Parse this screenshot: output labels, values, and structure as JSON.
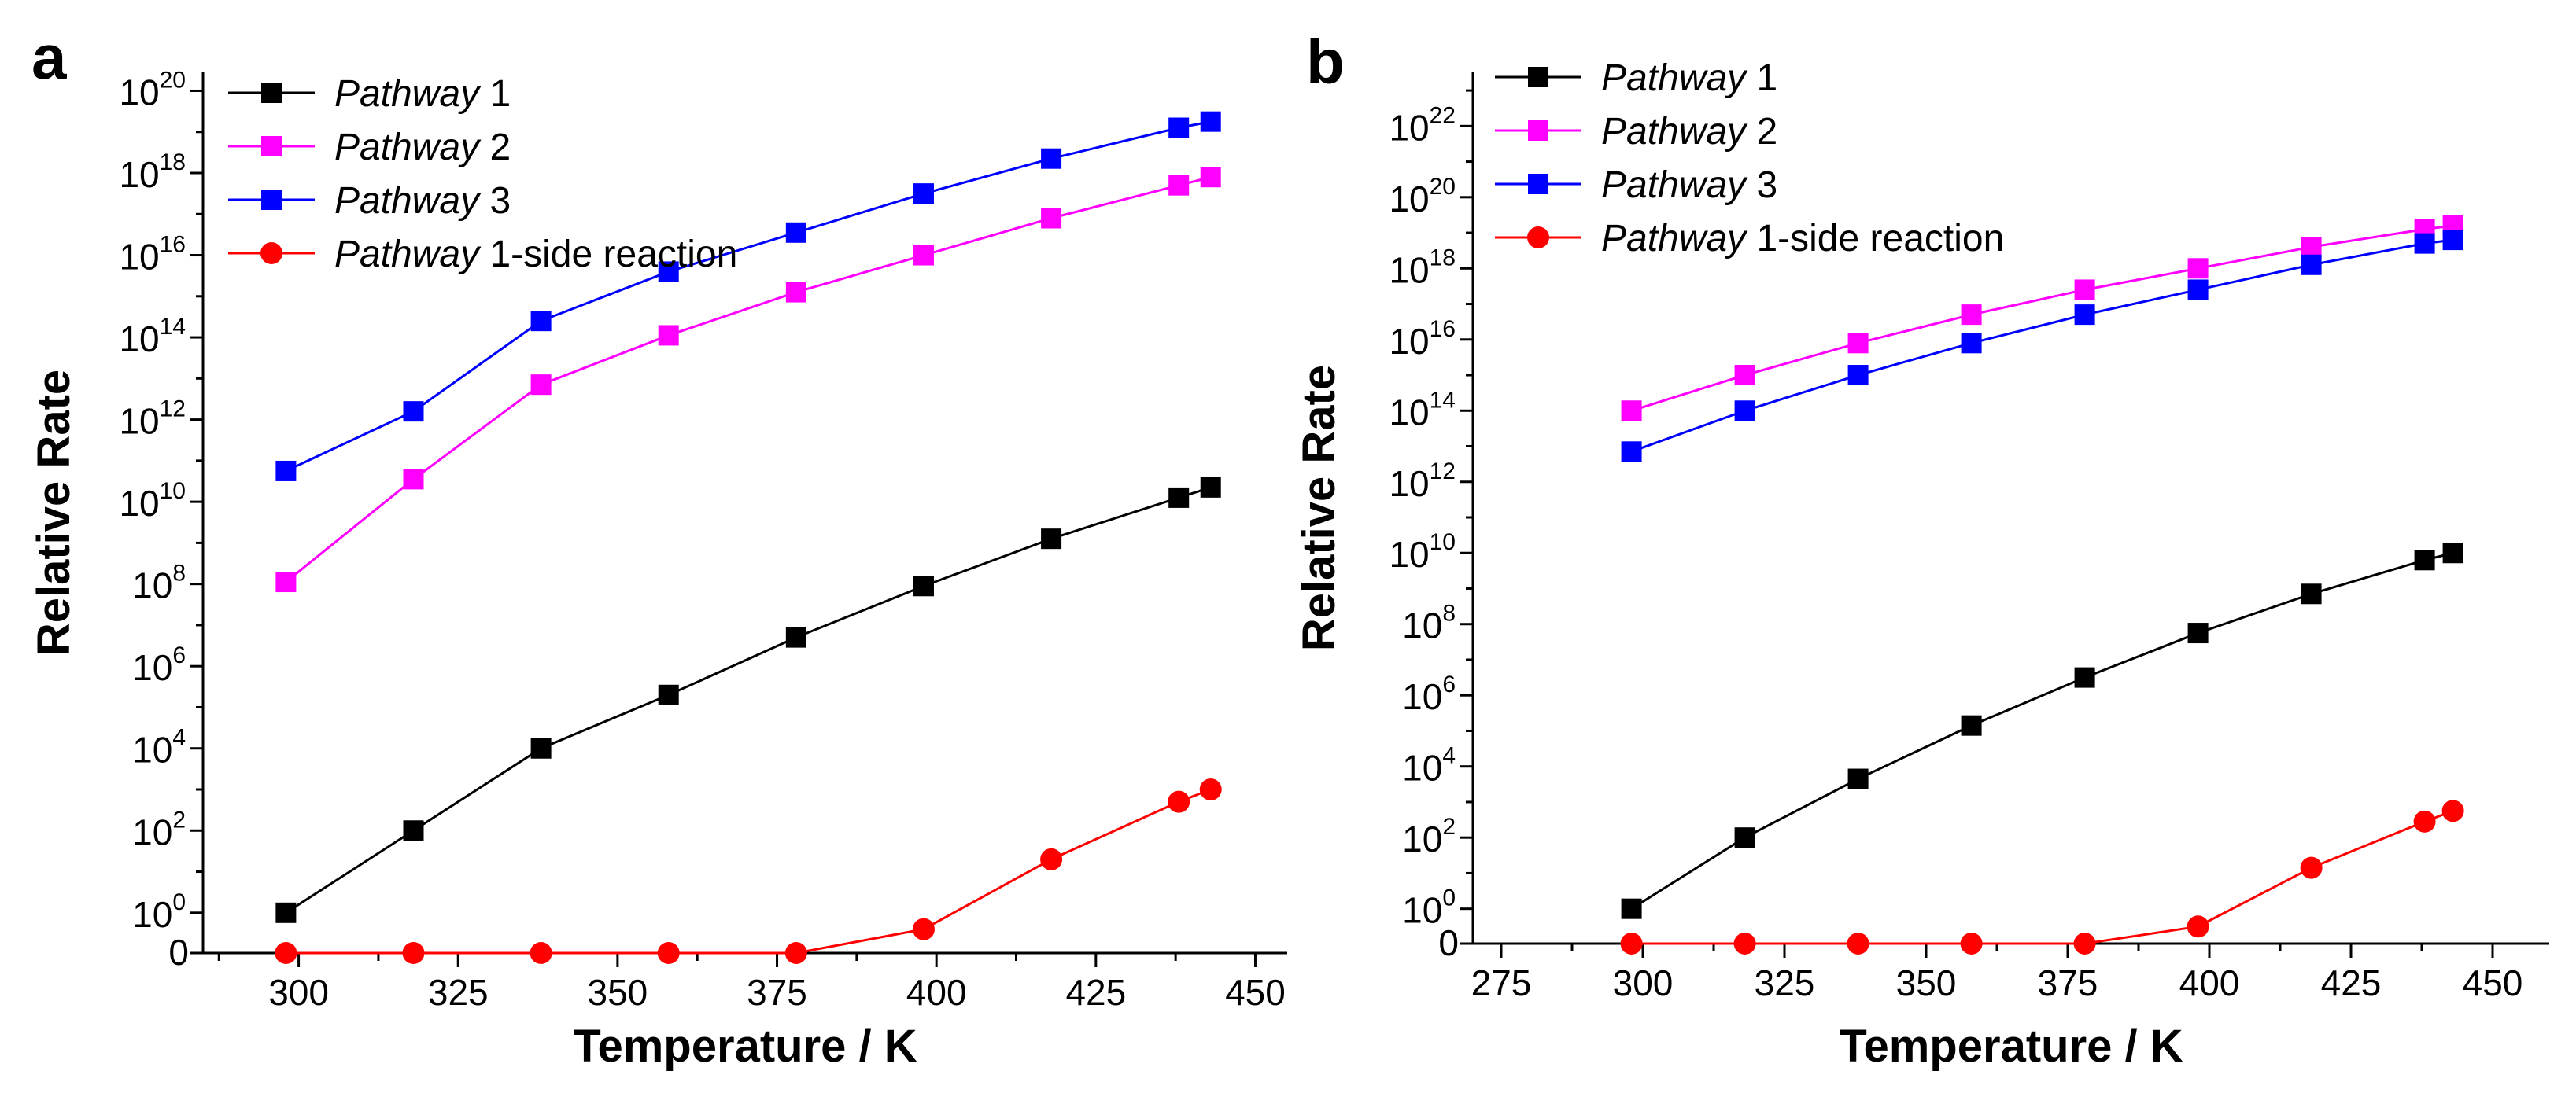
{
  "colors": {
    "pathway1": "#000000",
    "pathway2": "#ff00ff",
    "pathway3": "#0000ff",
    "side_reaction": "#ff0000"
  },
  "chart_data": [
    {
      "panel": "a",
      "type": "line",
      "xlabel": "Temperature / K",
      "ylabel": "Relative Rate",
      "xlim": [
        285,
        455
      ],
      "xticks": [
        300,
        325,
        350,
        375,
        400,
        425,
        450
      ],
      "y_scale": "log",
      "ylim_exponent": [
        -1,
        20.5
      ],
      "yticks_exponent": [
        0,
        2,
        4,
        6,
        8,
        10,
        12,
        14,
        16,
        18,
        20
      ],
      "y_bottom_label": "0",
      "legend_position": "top-left",
      "series": [
        {
          "name": "Pathway 1",
          "name_italic": "Pathway",
          "name_rest": " 1",
          "marker": "square",
          "color_key": "pathway1",
          "x": [
            298,
            318,
            338,
            358,
            378,
            398,
            418,
            438,
            443
          ],
          "log10_y": [
            0,
            2,
            4,
            5.3,
            6.7,
            7.95,
            9.1,
            10.1,
            10.35
          ]
        },
        {
          "name": "Pathway 2",
          "name_italic": "Pathway",
          "name_rest": " 2",
          "marker": "square",
          "color_key": "pathway2",
          "x": [
            298,
            318,
            338,
            358,
            378,
            398,
            418,
            438,
            443
          ],
          "log10_y": [
            8.05,
            10.55,
            12.85,
            14.05,
            15.1,
            16.0,
            16.9,
            17.7,
            17.9
          ]
        },
        {
          "name": "Pathway 3",
          "name_italic": "Pathway",
          "name_rest": " 3",
          "marker": "square",
          "color_key": "pathway3",
          "x": [
            298,
            318,
            338,
            358,
            378,
            398,
            418,
            438,
            443
          ],
          "log10_y": [
            10.75,
            12.2,
            14.4,
            15.6,
            16.55,
            17.5,
            18.35,
            19.1,
            19.25
          ]
        },
        {
          "name": "Pathway 1-side reaction",
          "name_italic": "Pathway",
          "name_rest": " 1-side reaction",
          "marker": "circle",
          "color_key": "side_reaction",
          "x": [
            298,
            318,
            338,
            358,
            378,
            398,
            418,
            438,
            443
          ],
          "log10_y": [
            null,
            null,
            null,
            null,
            null,
            -0.4,
            1.3,
            2.7,
            3.0
          ],
          "zero_points": [
            298,
            318,
            338,
            358,
            378
          ]
        }
      ],
      "text": {
        "title_letter": "a",
        "legend": [
          "Pathway 1",
          "Pathway 2",
          "Pathway 3",
          "Pathway 1-side reaction"
        ]
      }
    },
    {
      "panel": "b",
      "type": "line",
      "xlabel": "Temperature / K",
      "ylabel": "Relative Rate",
      "xlim": [
        270,
        460
      ],
      "xticks": [
        275,
        300,
        325,
        350,
        375,
        400,
        425,
        450
      ],
      "y_scale": "log",
      "ylim_exponent": [
        -1,
        23.5
      ],
      "yticks_exponent": [
        0,
        2,
        4,
        6,
        8,
        10,
        12,
        14,
        16,
        18,
        20,
        22
      ],
      "y_bottom_label": "0",
      "legend_position": "top-left",
      "series": [
        {
          "name": "Pathway 1",
          "name_italic": "Pathway",
          "name_rest": " 1",
          "marker": "square",
          "color_key": "pathway1",
          "x": [
            298,
            318,
            338,
            358,
            378,
            398,
            418,
            438,
            443
          ],
          "log10_y": [
            0,
            2,
            3.65,
            5.15,
            6.5,
            7.75,
            8.85,
            9.8,
            10.0
          ]
        },
        {
          "name": "Pathway 2",
          "name_italic": "Pathway",
          "name_rest": " 2",
          "marker": "square",
          "color_key": "pathway2",
          "x": [
            298,
            318,
            338,
            358,
            378,
            398,
            418,
            438,
            443
          ],
          "log10_y": [
            14.0,
            15.0,
            15.9,
            16.7,
            17.4,
            18.0,
            18.6,
            19.1,
            19.2
          ]
        },
        {
          "name": "Pathway 3",
          "name_italic": "Pathway",
          "name_rest": " 3",
          "marker": "square",
          "color_key": "pathway3",
          "x": [
            298,
            318,
            338,
            358,
            378,
            398,
            418,
            438,
            443
          ],
          "log10_y": [
            12.85,
            14.0,
            15.0,
            15.9,
            16.7,
            17.4,
            18.1,
            18.7,
            18.8
          ]
        },
        {
          "name": "Pathway 1-side reaction",
          "name_italic": "Pathway",
          "name_rest": " 1-side reaction",
          "marker": "circle",
          "color_key": "side_reaction",
          "x": [
            298,
            318,
            338,
            358,
            378,
            398,
            418,
            438,
            443
          ],
          "log10_y": [
            null,
            null,
            null,
            null,
            null,
            -0.5,
            1.15,
            2.45,
            2.75
          ],
          "zero_points": [
            298,
            318,
            338,
            358,
            378
          ]
        }
      ],
      "text": {
        "title_letter": "b",
        "legend": [
          "Pathway 1",
          "Pathway 2",
          "Pathway 3",
          "Pathway 1-side reaction"
        ]
      }
    }
  ]
}
